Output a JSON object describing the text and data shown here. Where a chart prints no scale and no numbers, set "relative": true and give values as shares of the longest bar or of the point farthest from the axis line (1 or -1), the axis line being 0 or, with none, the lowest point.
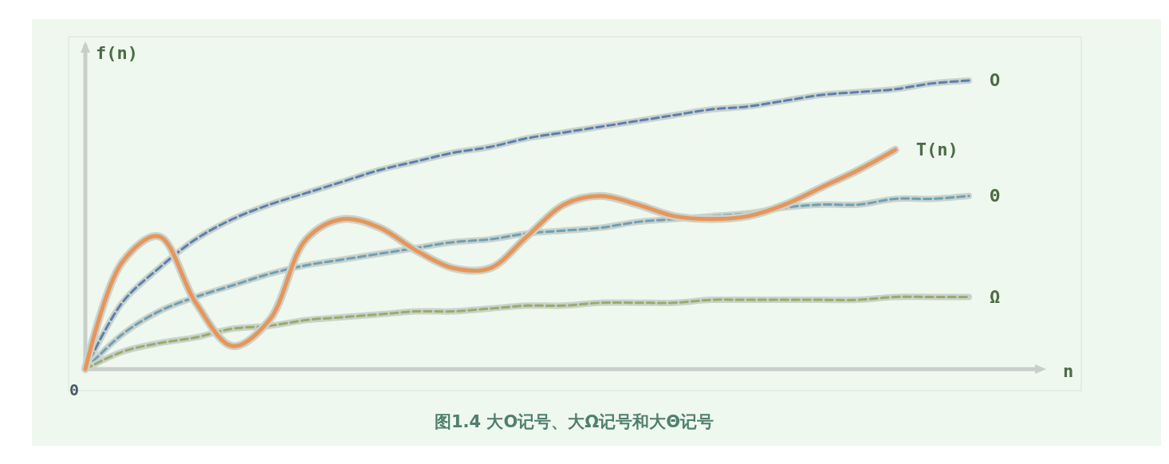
{
  "chart_data": {
    "type": "line",
    "title": "图1.4 大O记号、大Ω记号和大Θ记号",
    "xlabel": "n",
    "ylabel": "f(n)",
    "relative": true,
    "annotations": [
      "0"
    ],
    "categories": [
      null,
      null,
      null,
      null,
      null,
      null,
      null,
      null,
      null,
      null,
      null,
      null,
      null,
      null,
      null,
      null,
      null,
      null,
      null,
      null,
      null,
      null,
      null,
      null,
      null
    ],
    "series": [
      {
        "name": "O",
        "color": "#5b7fb0",
        "line_style": "dashed",
        "values": [
          0,
          0.23,
          0.35,
          0.45,
          0.52,
          0.57,
          0.61,
          0.65,
          0.69,
          0.72,
          0.75,
          0.77,
          0.8,
          0.82,
          0.84,
          0.86,
          0.88,
          0.9,
          0.91,
          0.93,
          0.95,
          0.96,
          0.97,
          0.99,
          1
        ]
      },
      {
        "name": "Θ",
        "color": "#6f9fb5",
        "line_style": "dashed",
        "values": [
          0,
          0.12,
          0.2,
          0.25,
          0.29,
          0.33,
          0.36,
          0.38,
          0.4,
          0.42,
          0.44,
          0.45,
          0.47,
          0.48,
          0.49,
          0.51,
          0.52,
          0.53,
          0.54,
          0.56,
          0.57,
          0.57,
          0.59,
          0.59,
          0.6
        ]
      },
      {
        "name": "Ω",
        "color": "#9aab6a",
        "line_style": "dashed",
        "values": [
          0,
          0.06,
          0.09,
          0.11,
          0.14,
          0.15,
          0.17,
          0.18,
          0.19,
          0.2,
          0.2,
          0.21,
          0.22,
          0.22,
          0.23,
          0.23,
          0.23,
          0.24,
          0.24,
          0.24,
          0.24,
          0.24,
          0.25,
          0.25,
          0.25
        ]
      },
      {
        "name": "T(n)",
        "color": "#e8955a",
        "line_style": "solid",
        "values": [
          0,
          0.37,
          0.46,
          0.23,
          0.08,
          0.17,
          0.45,
          0.52,
          0.49,
          0.41,
          0.35,
          0.35,
          0.46,
          0.57,
          0.6,
          0.57,
          0.53,
          0.52,
          0.53,
          0.57,
          0.63,
          0.69,
          0.76,
          null,
          null
        ]
      }
    ]
  }
}
